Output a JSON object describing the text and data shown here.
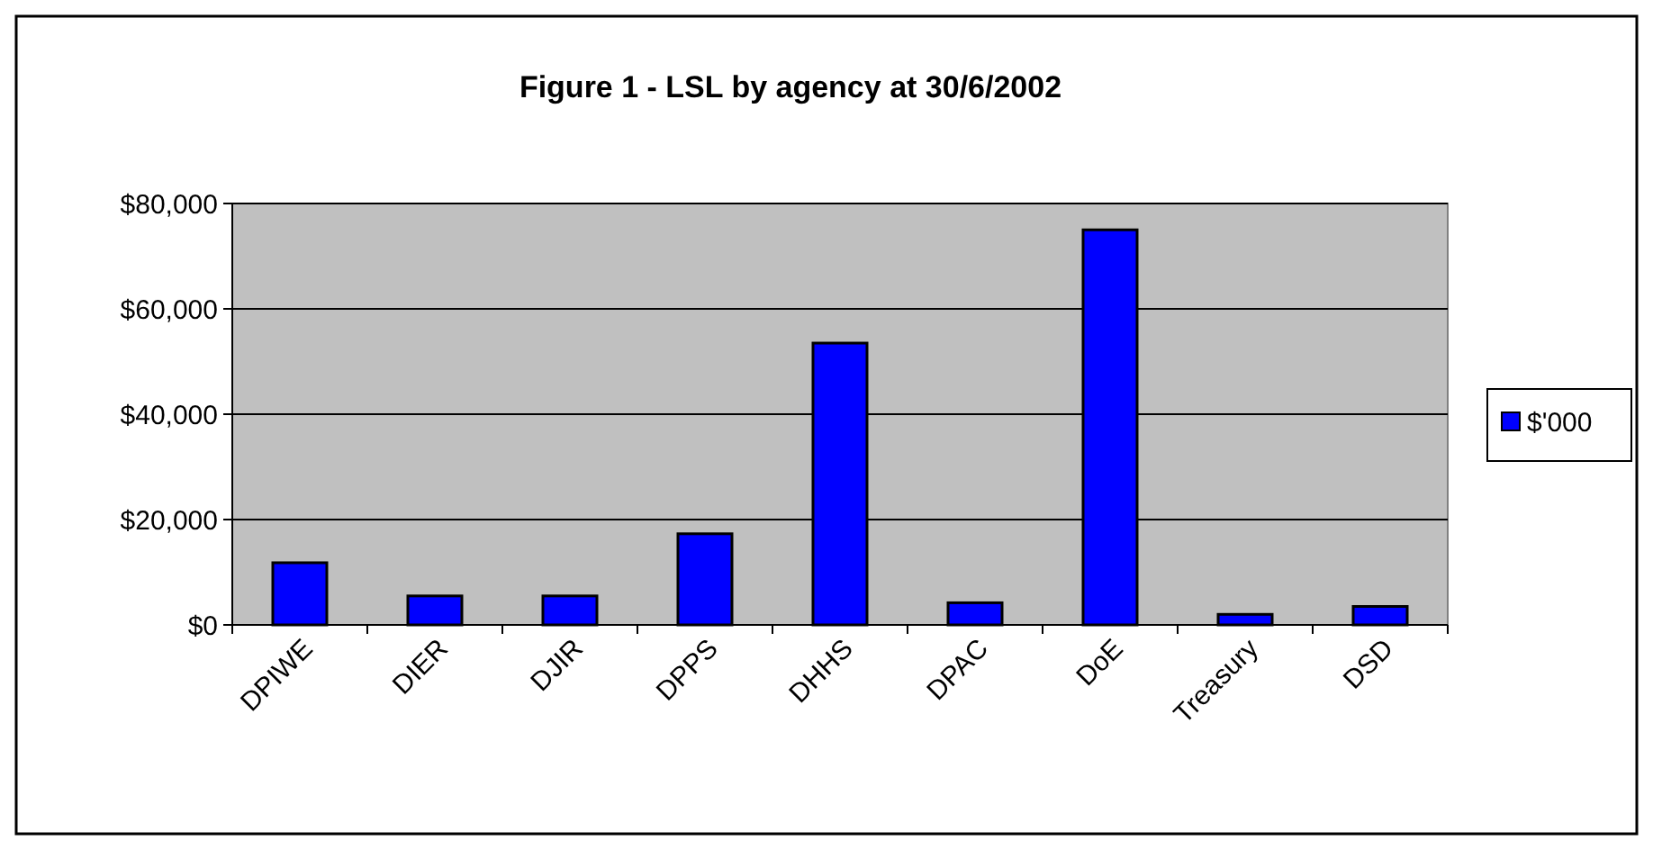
{
  "chart_data": {
    "type": "bar",
    "title": "Figure 1 - LSL by agency at 30/6/2002",
    "categories": [
      "DPIWE",
      "DIER",
      "DJIR",
      "DPPS",
      "DHHS",
      "DPAC",
      "DoE",
      "Treasury",
      "DSD"
    ],
    "series": [
      {
        "name": "$'000",
        "color": "#0000ff",
        "values": [
          11800,
          5500,
          5500,
          17300,
          53500,
          4200,
          75000,
          2000,
          3500
        ]
      }
    ],
    "ylim": [
      0,
      80000
    ],
    "yticks": [
      {
        "value": 0,
        "label": "$0"
      },
      {
        "value": 20000,
        "label": "$20,000"
      },
      {
        "value": 40000,
        "label": "$40,000"
      },
      {
        "value": 60000,
        "label": "$60,000"
      },
      {
        "value": 80000,
        "label": "$80,000"
      }
    ],
    "grid": "y",
    "legend": "right"
  }
}
